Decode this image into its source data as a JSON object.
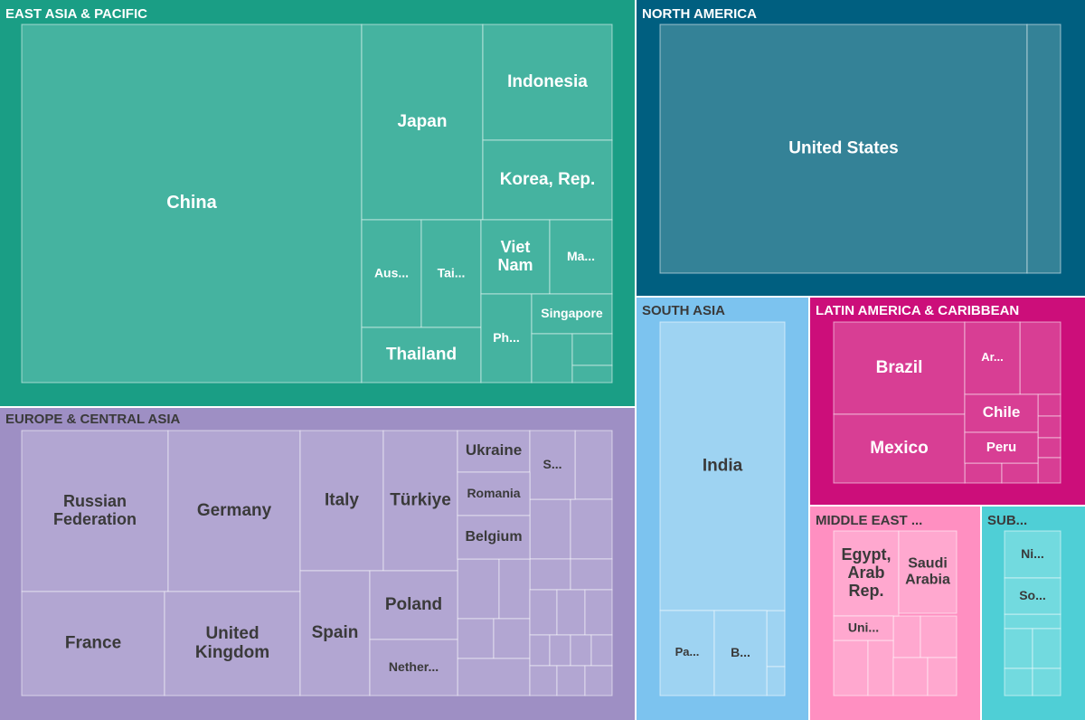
{
  "chart_data": {
    "type": "treemap",
    "regions": [
      {
        "name": "EAST ASIA & PACIFIC",
        "color": "#1a9e85",
        "cell_color": "#45b3a0",
        "text_color": "#ffffff",
        "countries": [
          {
            "label": "China"
          },
          {
            "label": "Japan"
          },
          {
            "label": "Indonesia"
          },
          {
            "label": "Korea, Rep."
          },
          {
            "label": "Aus..."
          },
          {
            "label": "Tai..."
          },
          {
            "label": "Viet Nam"
          },
          {
            "label": "Ma..."
          },
          {
            "label": "Thailand"
          },
          {
            "label": "Ph..."
          },
          {
            "label": "Singapore"
          },
          {
            "label": ""
          },
          {
            "label": ""
          },
          {
            "label": ""
          }
        ]
      },
      {
        "name": "NORTH AMERICA",
        "color": "#005f80",
        "cell_color": "#348297",
        "text_color": "#ffffff",
        "countries": [
          {
            "label": "United States"
          },
          {
            "label": ""
          }
        ]
      },
      {
        "name": "EUROPE & CENTRAL ASIA",
        "color": "#9e8fc4",
        "cell_color": "#b2a6d2",
        "text_color": "#3a3a3a",
        "countries": [
          {
            "label": "Russian Federation"
          },
          {
            "label": "Germany"
          },
          {
            "label": "Italy"
          },
          {
            "label": "Türkiye"
          },
          {
            "label": "Ukraine"
          },
          {
            "label": "S..."
          },
          {
            "label": "Romania"
          },
          {
            "label": "Belgium"
          },
          {
            "label": "France"
          },
          {
            "label": "United Kingdom"
          },
          {
            "label": "Spain"
          },
          {
            "label": "Poland"
          },
          {
            "label": "Nether..."
          }
        ]
      },
      {
        "name": "SOUTH ASIA",
        "color": "#7cc3ef",
        "cell_color": "#9ed3f2",
        "text_color": "#3a3a3a",
        "countries": [
          {
            "label": "India"
          },
          {
            "label": "Pa..."
          },
          {
            "label": "B..."
          }
        ]
      },
      {
        "name": "LATIN AMERICA & CARIBBEAN",
        "color": "#cc0e7a",
        "cell_color": "#d83e94",
        "text_color": "#ffffff",
        "countries": [
          {
            "label": "Brazil"
          },
          {
            "label": "Ar..."
          },
          {
            "label": "Mexico"
          },
          {
            "label": "Chile"
          },
          {
            "label": "Peru"
          }
        ]
      },
      {
        "name": "MIDDLE EAST ...",
        "color": "#ff8fc1",
        "cell_color": "#ffa8cf",
        "text_color": "#3a3a3a",
        "countries": [
          {
            "label": "Egypt, Arab Rep."
          },
          {
            "label": "Saudi Arabia"
          },
          {
            "label": "Uni..."
          }
        ]
      },
      {
        "name": "SUB...",
        "color": "#4fcfd6",
        "cell_color": "#72dadf",
        "text_color": "#3a3a3a",
        "countries": [
          {
            "label": "Ni..."
          },
          {
            "label": "So..."
          }
        ]
      }
    ]
  }
}
